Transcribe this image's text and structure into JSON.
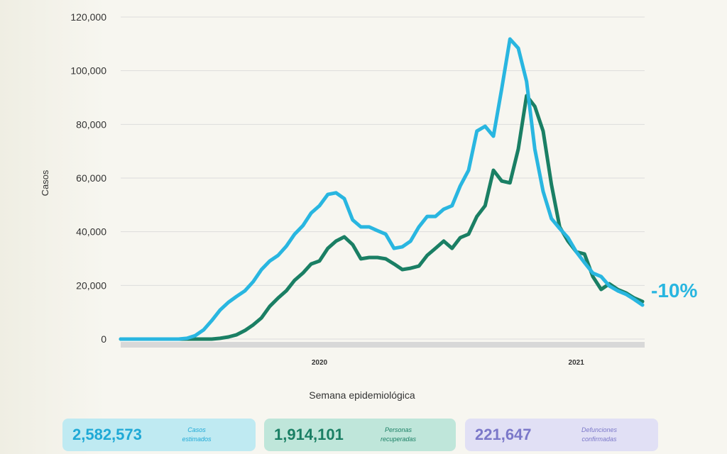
{
  "chart_data": {
    "type": "line",
    "xlabel": "Semana epidemiológica",
    "ylabel": "Casos",
    "ylim": [
      0,
      120000
    ],
    "yticks": [
      "0",
      "20,000",
      "40,000",
      "60,000",
      "80,000",
      "100,000",
      "120,000"
    ],
    "year_labels": [
      {
        "label": "2020",
        "week": 24
      },
      {
        "label": "2021",
        "week": 55
      }
    ],
    "grid": true,
    "x": [
      0,
      1,
      2,
      3,
      4,
      5,
      6,
      7,
      8,
      9,
      10,
      11,
      12,
      13,
      14,
      15,
      16,
      17,
      18,
      19,
      20,
      21,
      22,
      23,
      24,
      25,
      26,
      27,
      28,
      29,
      30,
      31,
      32,
      33,
      34,
      35,
      36,
      37,
      38,
      39,
      40,
      41,
      42,
      43,
      44,
      45,
      46,
      47,
      48,
      49,
      50,
      51,
      52,
      53,
      54,
      55,
      56,
      57,
      58,
      59,
      60,
      61,
      62,
      63
    ],
    "series": [
      {
        "color": "#29b6e0",
        "values": [
          0,
          0,
          0,
          0,
          0,
          0,
          0,
          0,
          300,
          1300,
          3400,
          6900,
          10800,
          13700,
          15900,
          18000,
          21400,
          25900,
          29100,
          31200,
          34600,
          39100,
          42300,
          47000,
          49700,
          53900,
          54500,
          52300,
          44400,
          41800,
          41800,
          40400,
          39100,
          33800,
          34400,
          36500,
          41800,
          45700,
          45700,
          48400,
          49700,
          57100,
          62900,
          77500,
          79300,
          75600,
          93300,
          111800,
          108400,
          96000,
          70800,
          55000,
          44900,
          41200,
          37800,
          32500,
          28500,
          24600,
          23300,
          19800,
          18000,
          16700,
          14800,
          12700
        ]
      },
      {
        "color": "#1a7f64",
        "values": [
          0,
          0,
          0,
          0,
          0,
          0,
          0,
          0,
          0,
          0,
          0,
          0,
          300,
          800,
          1600,
          3200,
          5300,
          7900,
          12200,
          15300,
          18000,
          21900,
          24600,
          28000,
          29100,
          33800,
          36500,
          38100,
          35200,
          29900,
          30400,
          30400,
          29900,
          28000,
          25900,
          26400,
          27200,
          31200,
          33800,
          36500,
          33800,
          37800,
          39100,
          45700,
          49700,
          62900,
          58900,
          58200,
          70800,
          90700,
          86700,
          77500,
          57600,
          41800,
          36500,
          32500,
          31700,
          23300,
          18500,
          20600,
          18500,
          17200,
          15300,
          14000
        ]
      }
    ],
    "annotation": {
      "text": "-10%",
      "color": "#29b6e0"
    }
  },
  "summary": [
    {
      "value": "2,582,573",
      "label1": "Casos",
      "label2": "estimados",
      "bg": "#bfeaf2",
      "color": "#1fa9d6"
    },
    {
      "value": "1,914,101",
      "label1": "Personas",
      "label2": "recuperadas",
      "bg": "#bfe6da",
      "color": "#1a7f64"
    },
    {
      "value": "221,647",
      "label1": "Defunciones",
      "label2": "confirmadas",
      "bg": "#e1e0f5",
      "color": "#7b78c9"
    }
  ]
}
